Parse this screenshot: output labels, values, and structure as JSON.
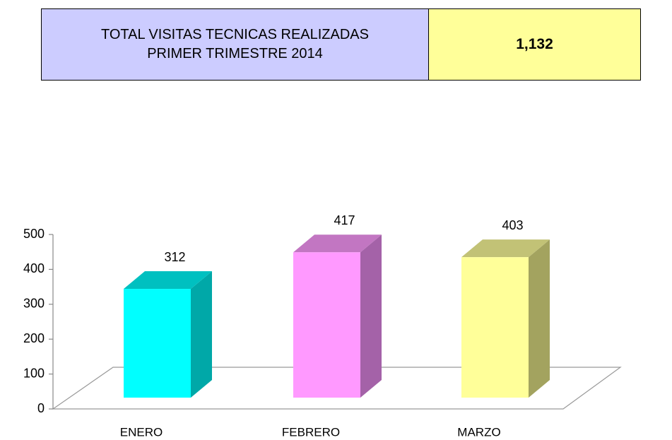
{
  "header": {
    "label_lines": [
      "TOTAL VISITAS TECNICAS REALIZADAS",
      "PRIMER TRIMESTRE 2014"
    ],
    "total": "1,132"
  },
  "chart_data": {
    "type": "bar3d",
    "categories": [
      "ENERO",
      "FEBRERO",
      "MARZO"
    ],
    "values": [
      312,
      417,
      403
    ],
    "colors": [
      "#00ffff",
      "#ff99ff",
      "#ffff99"
    ],
    "side_colors": [
      "#00a8a8",
      "#a462a8",
      "#a3a35f"
    ],
    "top_colors": [
      "#00c0c0",
      "#c276c2",
      "#c2c276"
    ],
    "ylim": [
      0,
      500
    ],
    "yticks": [
      0,
      100,
      200,
      300,
      400,
      500
    ]
  }
}
